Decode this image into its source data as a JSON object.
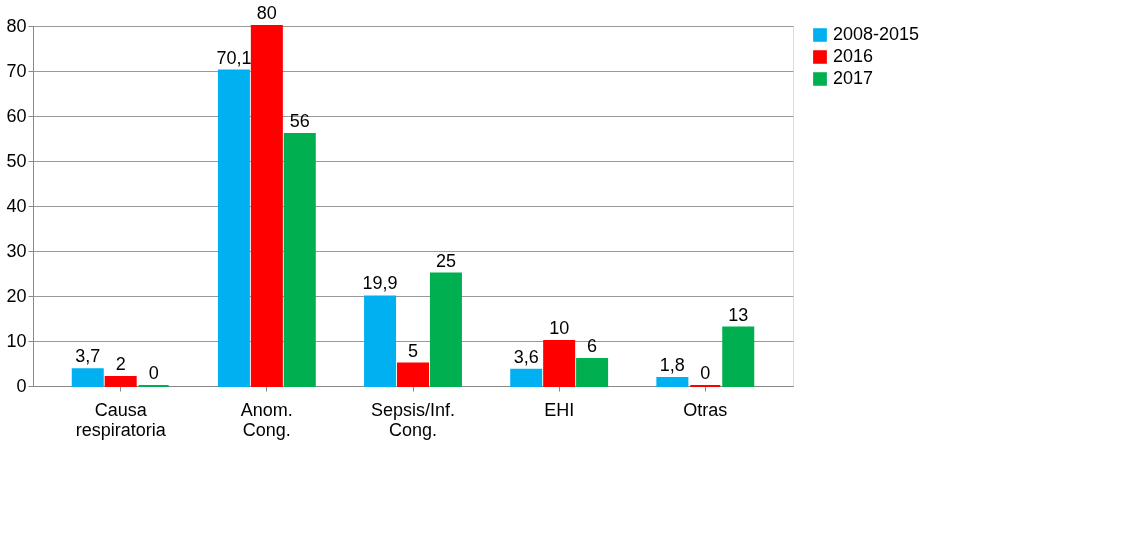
{
  "chart_data": {
    "type": "bar",
    "categories": [
      "Causa respiratoria",
      "Anom. Cong.",
      "Sepsis/Inf. Cong.",
      "EHI",
      "Otras"
    ],
    "series": [
      {
        "name": "2008-2015",
        "color": "#00b0f0",
        "values": [
          3.7,
          70.1,
          19.9,
          3.6,
          1.8
        ],
        "value_labels": [
          "3,7",
          "70,1",
          "19,9",
          "3,6",
          "1,8"
        ]
      },
      {
        "name": "2016",
        "color": "#ff0000",
        "values": [
          2,
          80,
          5,
          10,
          0
        ],
        "value_labels": [
          "2",
          "80",
          "5",
          "10",
          "0"
        ]
      },
      {
        "name": "2017",
        "color": "#00b050",
        "values": [
          0,
          56,
          25,
          6,
          13
        ],
        "value_labels": [
          "0",
          "56",
          "25",
          "6",
          "13"
        ]
      }
    ],
    "ylim": [
      0,
      80
    ],
    "yticks": [
      0,
      10,
      20,
      30,
      40,
      50,
      60,
      70,
      80
    ],
    "grid": "y",
    "legend": "right"
  }
}
